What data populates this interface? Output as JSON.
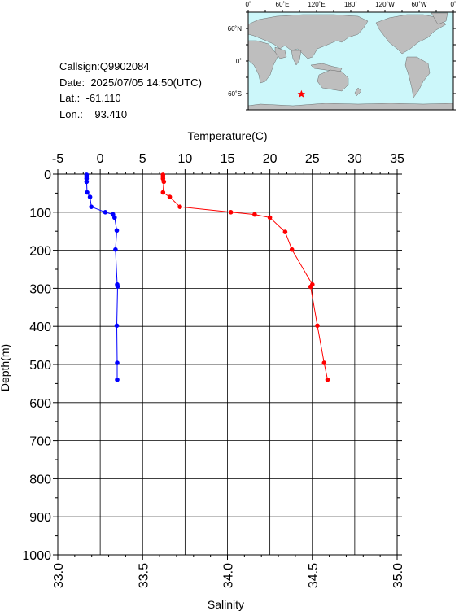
{
  "meta": {
    "callsign_label": "Callsign:",
    "callsign": "Q9902084",
    "date_label": "Date:",
    "date": "2025/07/05 14:50(UTC)",
    "lat_label": "Lat.:",
    "lat": "-61.110",
    "lon_label": "Lon.:",
    "lon": "93.410"
  },
  "map": {
    "lon_labels": [
      "0˚",
      "60˚E",
      "120˚E",
      "180˚",
      "120˚W",
      "60˚W",
      "0˚"
    ],
    "lat_labels": [
      "60˚N",
      "0˚",
      "60˚S"
    ],
    "ocean_color": "#ccf7fa",
    "land_color": "#bebebe",
    "marker_color": "#ff0000",
    "marker_icon": "star-icon"
  },
  "chart_data": {
    "type": "line",
    "ylabel": "Depth(m)",
    "y_ticks": [
      0,
      100,
      200,
      300,
      400,
      500,
      600,
      700,
      800,
      900,
      1000
    ],
    "ylim": [
      1000,
      0
    ],
    "top_axis": {
      "label": "Temperature(C)",
      "ticks": [
        -5,
        0,
        5,
        10,
        15,
        20,
        25,
        30,
        35
      ],
      "range": [
        -5,
        35
      ]
    },
    "bottom_axis": {
      "label": "Salinity",
      "ticks": [
        "33.0",
        "33.5",
        "34.0",
        "34.5",
        "35.0"
      ],
      "range": [
        33.0,
        35.0
      ]
    },
    "grid": true,
    "series": [
      {
        "axis": "top",
        "color": "#0000ff",
        "points": [
          [
            -1.6,
            2
          ],
          [
            -1.6,
            7
          ],
          [
            -1.6,
            12
          ],
          [
            -1.6,
            20
          ],
          [
            -1.55,
            48
          ],
          [
            -1.2,
            60
          ],
          [
            -1.05,
            86
          ],
          [
            0.6,
            100
          ],
          [
            1.5,
            106
          ],
          [
            1.7,
            114
          ],
          [
            1.95,
            148
          ],
          [
            1.8,
            198
          ],
          [
            2.0,
            290
          ],
          [
            2.05,
            295
          ],
          [
            1.95,
            398
          ],
          [
            2.0,
            496
          ],
          [
            2.0,
            540
          ]
        ]
      },
      {
        "axis": "bottom",
        "color": "#ff0000",
        "points": [
          [
            33.62,
            2
          ],
          [
            33.62,
            7
          ],
          [
            33.62,
            12
          ],
          [
            33.625,
            20
          ],
          [
            33.62,
            48
          ],
          [
            33.66,
            60
          ],
          [
            33.72,
            86
          ],
          [
            34.02,
            100
          ],
          [
            34.16,
            106
          ],
          [
            34.25,
            114
          ],
          [
            34.34,
            152
          ],
          [
            34.38,
            198
          ],
          [
            34.5,
            290
          ],
          [
            34.49,
            296
          ],
          [
            34.53,
            398
          ],
          [
            34.57,
            496
          ],
          [
            34.59,
            540
          ]
        ]
      }
    ]
  }
}
